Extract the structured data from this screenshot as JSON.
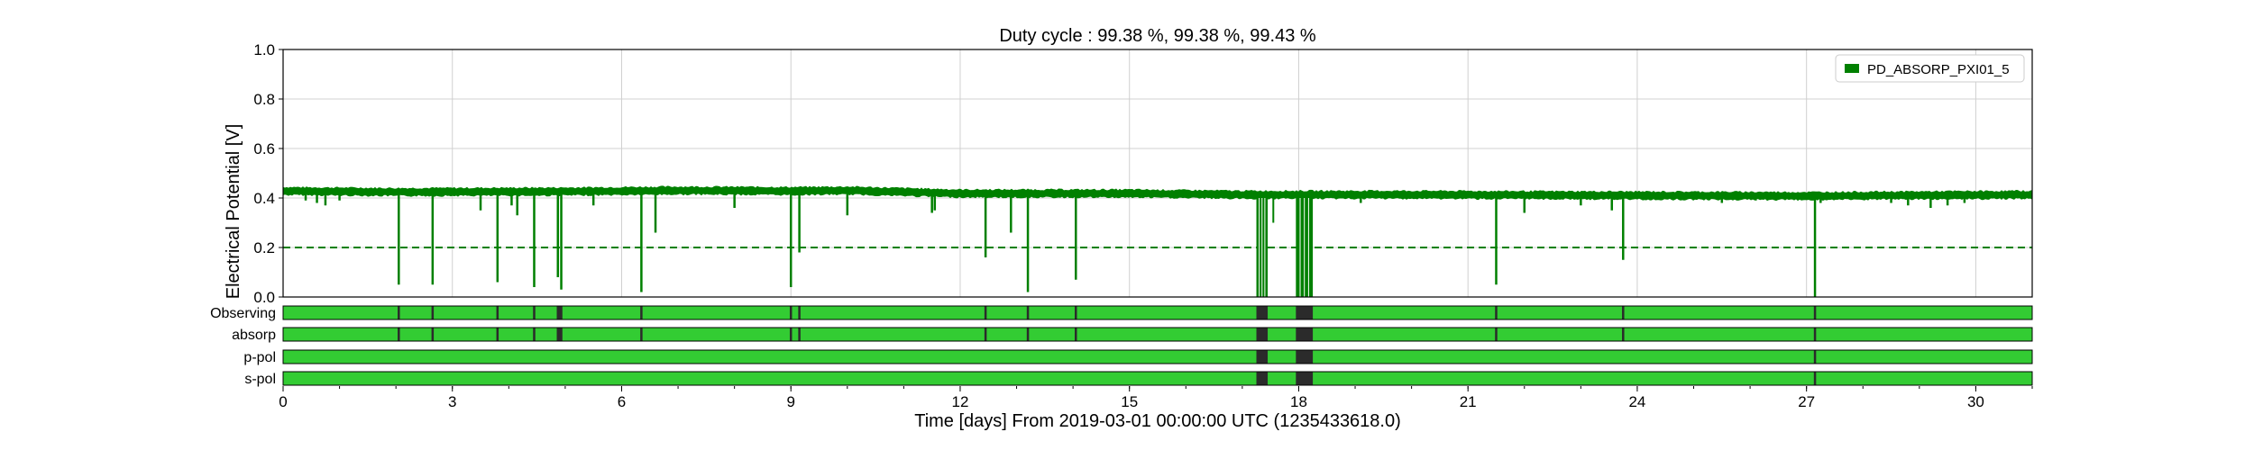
{
  "chart_data": {
    "type": "line",
    "title": "Duty cycle : 99.38 %, 99.38 %, 99.43 %",
    "xlabel": "Time [days] From 2019-03-01 00:00:00 UTC (1235433618.0)",
    "ylabel": "Electrical Potential [V]",
    "xlim": [
      0,
      31
    ],
    "ylim": [
      0.0,
      1.0
    ],
    "x_ticks": [
      0,
      3,
      6,
      9,
      12,
      15,
      18,
      21,
      24,
      27,
      30
    ],
    "x_tick_labels": [
      "0",
      "3",
      "6",
      "9",
      "12",
      "15",
      "18",
      "21",
      "24",
      "27",
      "30"
    ],
    "y_ticks": [
      0.0,
      0.2,
      0.4,
      0.6,
      0.8,
      1.0
    ],
    "y_tick_labels": [
      "0.0",
      "0.2",
      "0.4",
      "0.6",
      "0.8",
      "1.0"
    ],
    "grid": true,
    "legend_position": "top-right",
    "series": [
      {
        "name": "PD_ABSORP_PXI01_5",
        "color": "#008000",
        "baseline": [
          [
            0,
            0.43
          ],
          [
            2,
            0.426
          ],
          [
            5,
            0.428
          ],
          [
            7,
            0.432
          ],
          [
            9,
            0.43
          ],
          [
            10,
            0.432
          ],
          [
            12,
            0.42
          ],
          [
            15,
            0.42
          ],
          [
            17,
            0.415
          ],
          [
            20,
            0.415
          ],
          [
            24,
            0.412
          ],
          [
            27,
            0.41
          ],
          [
            31,
            0.415
          ]
        ],
        "dips": [
          [
            0.4,
            0.39
          ],
          [
            0.6,
            0.38
          ],
          [
            0.75,
            0.37
          ],
          [
            1.0,
            0.39
          ],
          [
            2.05,
            0.05
          ],
          [
            2.65,
            0.05
          ],
          [
            3.5,
            0.35
          ],
          [
            3.8,
            0.06
          ],
          [
            4.05,
            0.37
          ],
          [
            4.15,
            0.33
          ],
          [
            4.45,
            0.04
          ],
          [
            4.87,
            0.08
          ],
          [
            4.93,
            0.03
          ],
          [
            5.5,
            0.37
          ],
          [
            6.35,
            0.02
          ],
          [
            6.6,
            0.26
          ],
          [
            8.0,
            0.36
          ],
          [
            9.0,
            0.04
          ],
          [
            9.15,
            0.18
          ],
          [
            10.0,
            0.33
          ],
          [
            11.5,
            0.34
          ],
          [
            11.55,
            0.35
          ],
          [
            12.45,
            0.16
          ],
          [
            12.9,
            0.26
          ],
          [
            13.2,
            0.02
          ],
          [
            14.05,
            0.07
          ],
          [
            19.1,
            0.38
          ],
          [
            21.5,
            0.05
          ],
          [
            22.0,
            0.34
          ],
          [
            23.0,
            0.37
          ],
          [
            23.55,
            0.35
          ],
          [
            23.75,
            0.15
          ],
          [
            25.5,
            0.38
          ],
          [
            26.1,
            0.39
          ],
          [
            27.15,
            0.0
          ],
          [
            27.25,
            0.38
          ],
          [
            28.5,
            0.38
          ],
          [
            28.8,
            0.37
          ],
          [
            29.2,
            0.36
          ],
          [
            29.5,
            0.37
          ],
          [
            29.8,
            0.38
          ]
        ],
        "dropouts": [
          [
            17.25,
            17.45
          ],
          [
            17.95,
            18.25
          ]
        ],
        "dropout_wide_spikes": [
          17.55
        ]
      }
    ],
    "reference_line": {
      "y": 0.2,
      "style": "dashed",
      "color": "#008000"
    },
    "segments": {
      "color_active": "#33cc33",
      "color_inactive": "#2b2b2b",
      "rows": [
        {
          "label": "Observing",
          "gaps": [
            [
              2.03,
              2.07
            ],
            [
              2.63,
              2.67
            ],
            [
              3.78,
              3.82
            ],
            [
              4.43,
              4.47
            ],
            [
              4.85,
              4.95
            ],
            [
              6.33,
              6.37
            ],
            [
              8.98,
              9.02
            ],
            [
              9.13,
              9.17
            ],
            [
              12.43,
              12.47
            ],
            [
              13.18,
              13.22
            ],
            [
              14.03,
              14.07
            ],
            [
              17.25,
              17.45
            ],
            [
              17.95,
              18.25
            ],
            [
              21.48,
              21.52
            ],
            [
              23.73,
              23.77
            ],
            [
              27.13,
              27.17
            ]
          ]
        },
        {
          "label": "absorp",
          "gaps": [
            [
              2.03,
              2.07
            ],
            [
              2.63,
              2.67
            ],
            [
              3.78,
              3.82
            ],
            [
              4.43,
              4.47
            ],
            [
              4.85,
              4.95
            ],
            [
              6.33,
              6.37
            ],
            [
              8.98,
              9.02
            ],
            [
              9.13,
              9.17
            ],
            [
              12.43,
              12.47
            ],
            [
              13.18,
              13.22
            ],
            [
              14.03,
              14.07
            ],
            [
              17.25,
              17.45
            ],
            [
              17.95,
              18.25
            ],
            [
              21.48,
              21.52
            ],
            [
              23.73,
              23.77
            ],
            [
              27.13,
              27.17
            ]
          ]
        },
        {
          "label": "p-pol",
          "gaps": [
            [
              17.25,
              17.45
            ],
            [
              17.95,
              18.25
            ],
            [
              27.13,
              27.17
            ]
          ]
        },
        {
          "label": "s-pol",
          "gaps": [
            [
              17.25,
              17.45
            ],
            [
              17.95,
              18.25
            ],
            [
              27.13,
              27.17
            ]
          ]
        }
      ]
    }
  }
}
